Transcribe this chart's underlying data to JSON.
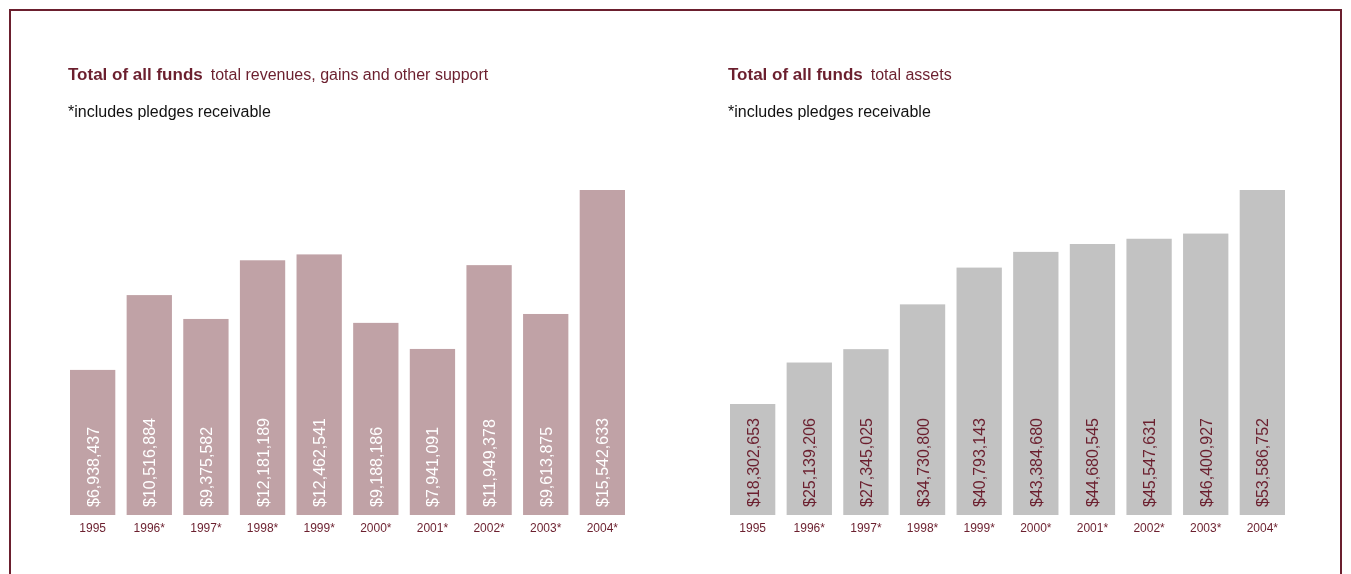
{
  "chart_data": [
    {
      "type": "bar",
      "title": "Total of all funds",
      "subtitle": "total revenues, gains and other support",
      "annotations": [
        "*includes pledges receivable"
      ],
      "categories": [
        "1995",
        "1996*",
        "1997*",
        "1998*",
        "1999*",
        "2000*",
        "2001*",
        "2002*",
        "2003*",
        "2004*"
      ],
      "values": [
        6938437,
        10516884,
        9375582,
        12181189,
        12462541,
        9188186,
        7941091,
        11949378,
        9613875,
        15542633
      ],
      "value_labels": [
        "$6,938,437",
        "$10,516,884",
        "$9,375,582",
        "$12,181,189",
        "$12,462,541",
        "$9,188,186",
        "$7,941,091",
        "$11,949,378",
        "$9,613,875",
        "$15,542,633"
      ],
      "color": "#c0a2a6",
      "tick_labels": "x"
    },
    {
      "type": "bar",
      "title": "Total of all funds",
      "subtitle": "total assets",
      "annotations": [
        "*includes pledges receivable"
      ],
      "categories": [
        "1995",
        "1996*",
        "1997*",
        "1998*",
        "1999*",
        "2000*",
        "2001*",
        "2002*",
        "2003*",
        "2004*"
      ],
      "values": [
        18302653,
        25139206,
        27345025,
        34730800,
        40793143,
        43384680,
        44680545,
        45547631,
        46400927,
        53586752
      ],
      "value_labels": [
        "$18,302,653",
        "$25,139,206",
        "$27,345,025",
        "$34,730,800",
        "$40,793,143",
        "$43,384,680",
        "$44,680,545",
        "$45,547,631",
        "$46,400,927",
        "$53,586,752"
      ],
      "color": "#c2c2c2",
      "tick_labels": "x"
    }
  ]
}
